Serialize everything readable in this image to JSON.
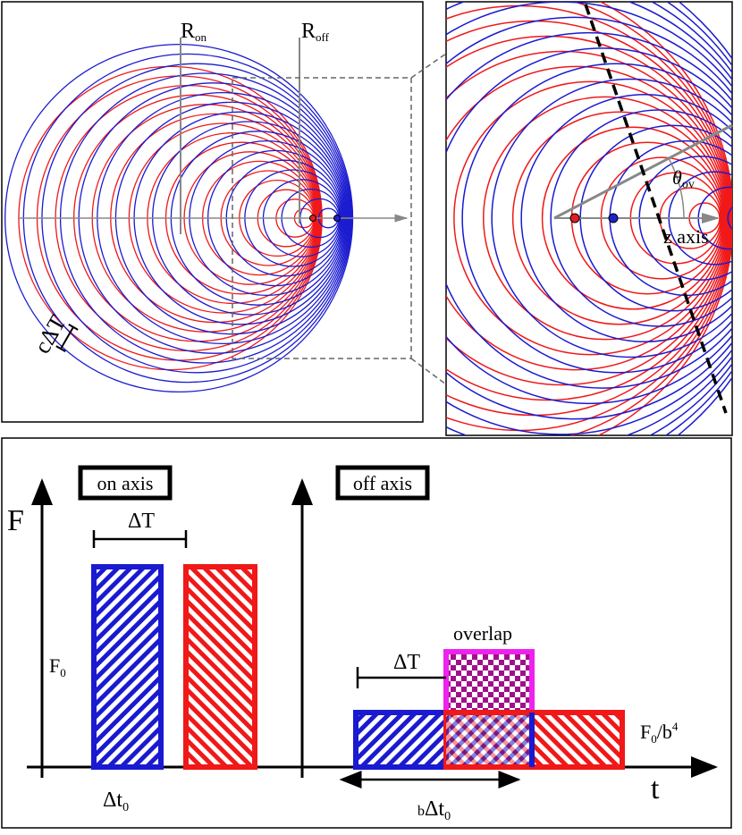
{
  "top_left": {
    "r_on": {
      "base": "R",
      "sub": "on"
    },
    "r_off": {
      "base": "R",
      "sub": "off"
    },
    "c_delta_t": "cΔT"
  },
  "top_right": {
    "theta": {
      "base": "θ",
      "sub": "ov"
    },
    "axis_label": "z axis"
  },
  "bottom": {
    "on_axis": "on axis",
    "off_axis": "off axis",
    "y_label": "F",
    "x_label": "t",
    "delta_t_on": "ΔT",
    "f0": {
      "base": "F",
      "sub": "0"
    },
    "dt0": {
      "base": "Δt",
      "sub": "0"
    },
    "overlap": "overlap",
    "delta_t_off": "ΔT",
    "f0_b4": {
      "base": "F",
      "sub": "0",
      "tail": "/b",
      "sup": "4"
    },
    "b_dt0": {
      "pre": "b",
      "base": "Δt",
      "sub": "0"
    }
  }
}
